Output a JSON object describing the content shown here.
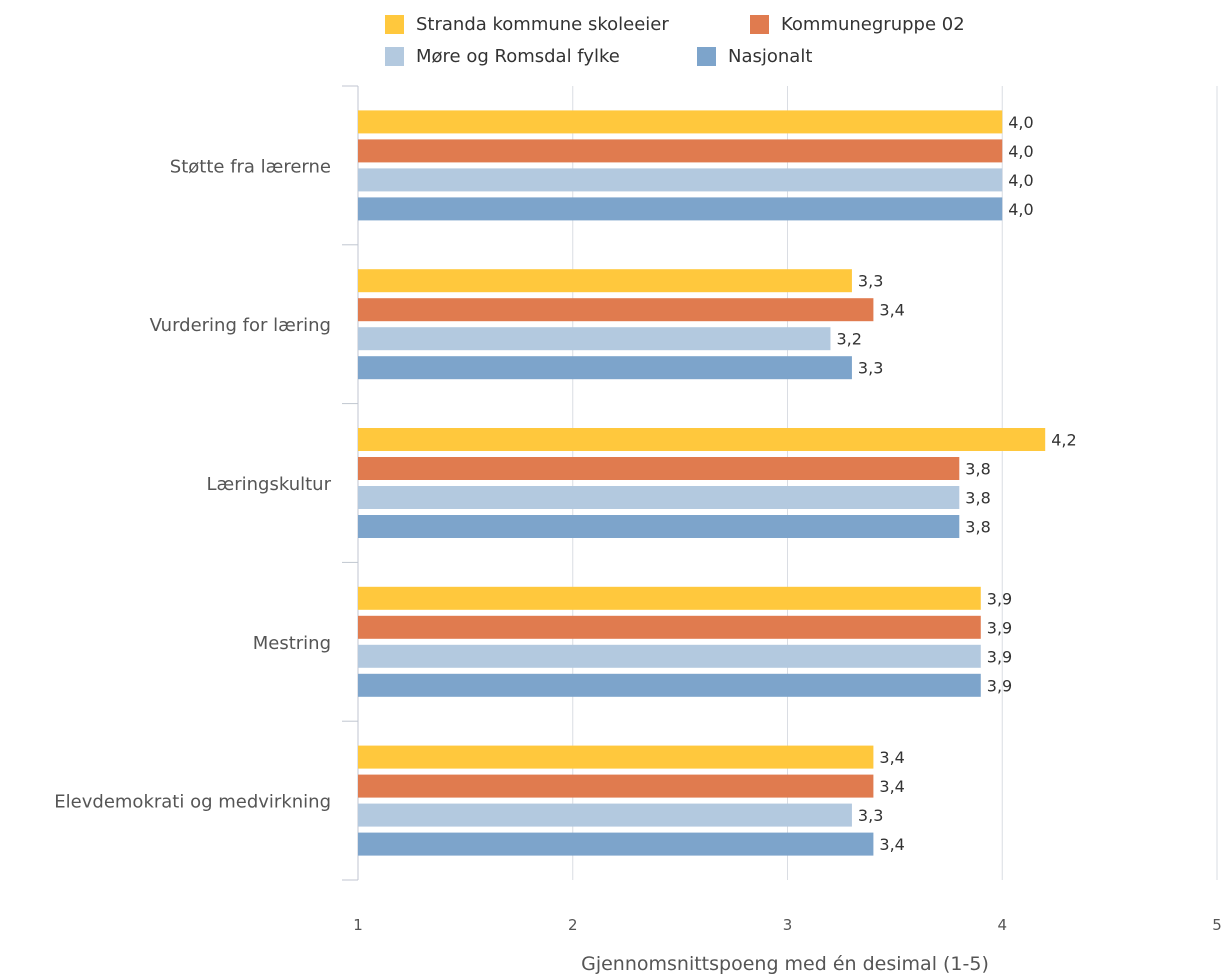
{
  "chart_data": {
    "type": "bar",
    "orientation": "horizontal",
    "categories": [
      "Støtte fra lærerne",
      "Vurdering for læring",
      "Læringskultur",
      "Mestring",
      "Elevdemokrati og medvirkning"
    ],
    "series": [
      {
        "name": "Stranda kommune skoleeier",
        "color": "#FFC83D",
        "values": [
          4.0,
          3.3,
          4.2,
          3.9,
          3.4
        ]
      },
      {
        "name": "Kommunegruppe 02",
        "color": "#E07B4F",
        "values": [
          4.0,
          3.4,
          3.8,
          3.9,
          3.4
        ]
      },
      {
        "name": "Møre og Romsdal fylke",
        "color": "#B3C9DF",
        "values": [
          4.0,
          3.2,
          3.8,
          3.9,
          3.3
        ]
      },
      {
        "name": "Nasjonalt",
        "color": "#7DA4CB",
        "values": [
          4.0,
          3.3,
          3.8,
          3.9,
          3.4
        ]
      }
    ],
    "value_labels": [
      [
        "4,0",
        "3,3",
        "4,2",
        "3,9",
        "3,4"
      ],
      [
        "4,0",
        "3,4",
        "3,8",
        "3,9",
        "3,4"
      ],
      [
        "4,0",
        "3,2",
        "3,8",
        "3,9",
        "3,3"
      ],
      [
        "4,0",
        "3,3",
        "3,8",
        "3,9",
        "3,4"
      ]
    ],
    "xlabel": "Gjennomsnittspoeng med én desimal (1-5)",
    "xlim": [
      1,
      5
    ],
    "xticks": [
      "1",
      "2",
      "3",
      "4",
      "5"
    ],
    "grid": true,
    "legend": "top"
  }
}
